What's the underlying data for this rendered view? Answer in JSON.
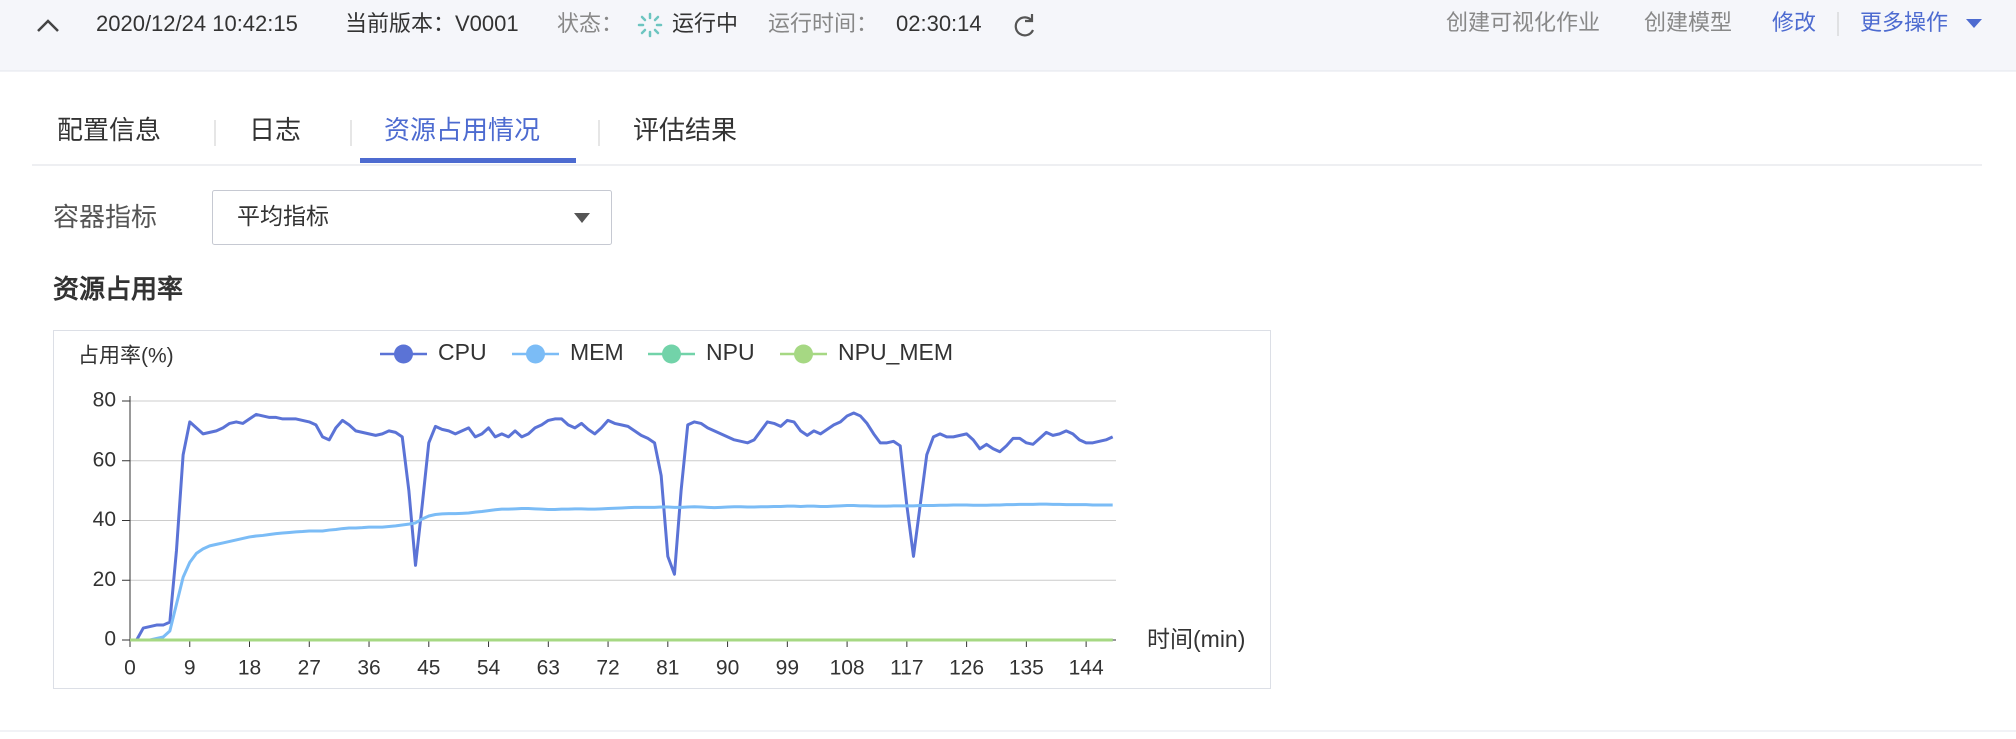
{
  "header": {
    "timestamp": "2020/12/24 10:42:15",
    "version": "当前版本：V0001",
    "status_label": "状态：",
    "status": "运行中",
    "runtime_label": "运行时间：",
    "runtime": "02:30:14",
    "actions": [
      "创建可视化作业",
      "创建模型",
      "修改",
      "更多操作"
    ]
  },
  "tabs": [
    "配置信息",
    "日志",
    "资源占用情况",
    "评估结果"
  ],
  "filter": {
    "label": "容器指标",
    "value": "平均指标"
  },
  "section_title": "资源占用率",
  "chart_data": {
    "type": "line",
    "y_label": "占用率(%)",
    "x_label": "时间(min)",
    "x": [
      0,
      1,
      2,
      3,
      4,
      5,
      6,
      7,
      8,
      9,
      10,
      11,
      12,
      13,
      14,
      15,
      16,
      17,
      18,
      19,
      20,
      21,
      22,
      23,
      24,
      25,
      26,
      27,
      28,
      29,
      30,
      31,
      32,
      33,
      34,
      35,
      36,
      37,
      38,
      39,
      40,
      41,
      42,
      43,
      44,
      45,
      46,
      47,
      48,
      49,
      50,
      51,
      52,
      53,
      54,
      55,
      56,
      57,
      58,
      59,
      60,
      61,
      62,
      63,
      64,
      65,
      66,
      67,
      68,
      69,
      70,
      71,
      72,
      73,
      74,
      75,
      76,
      77,
      78,
      79,
      80,
      81,
      82,
      83,
      84,
      85,
      86,
      87,
      88,
      89,
      90,
      91,
      92,
      93,
      94,
      95,
      96,
      97,
      98,
      99,
      100,
      101,
      102,
      103,
      104,
      105,
      106,
      107,
      108,
      109,
      110,
      111,
      112,
      113,
      114,
      115,
      116,
      117,
      118,
      119,
      120,
      121,
      122,
      123,
      124,
      125,
      126,
      127,
      128,
      129,
      130,
      131,
      132,
      133,
      134,
      135,
      136,
      137,
      138,
      139,
      140,
      141,
      142,
      143,
      144,
      145,
      146,
      147,
      148
    ],
    "xlim": [
      0,
      148.5
    ],
    "xticks": [
      0,
      9,
      18,
      27,
      36,
      45,
      54,
      63,
      72,
      81,
      90,
      99,
      108,
      117,
      126,
      135,
      144
    ],
    "ylim": [
      0,
      80
    ],
    "yticks": [
      0,
      20,
      40,
      60,
      80
    ],
    "grid": true,
    "series": [
      {
        "name": "CPU",
        "color": "#5b73d6",
        "values": [
          0,
          0,
          4,
          4.5,
          5,
          5,
          6,
          30,
          62,
          73,
          71,
          69,
          69.5,
          70,
          71,
          72.5,
          73,
          72.5,
          74,
          75.5,
          75,
          74.5,
          74.5,
          74,
          74,
          74,
          73.5,
          73,
          72,
          68,
          67,
          71,
          73.5,
          72,
          70,
          69.5,
          69,
          68.5,
          69,
          70,
          69.5,
          68,
          50,
          25,
          45,
          66,
          71.5,
          70.5,
          70,
          69,
          70,
          71,
          68,
          69,
          71,
          68,
          69,
          68,
          70,
          68,
          69,
          71,
          72,
          73.5,
          74,
          74,
          72,
          71,
          72.5,
          70.5,
          69,
          71,
          73.5,
          72.5,
          72,
          71.5,
          70,
          68.5,
          67.5,
          66,
          55,
          28,
          22,
          50,
          72,
          73,
          72.5,
          71,
          70,
          69,
          68,
          67,
          66.5,
          66,
          67,
          70,
          73,
          72.5,
          71.5,
          73.5,
          73,
          70,
          68.5,
          70,
          69,
          70.5,
          72,
          73,
          75,
          76,
          75,
          72.5,
          69,
          66,
          66,
          66.5,
          65,
          45,
          28,
          45,
          62,
          68,
          69,
          68,
          68,
          68.5,
          69,
          67,
          64,
          65.5,
          64,
          63,
          65,
          67.5,
          67.5,
          66,
          65.5,
          67.5,
          69.5,
          68.5,
          69,
          70,
          69,
          67,
          66,
          66,
          66.5,
          67,
          68
        ]
      },
      {
        "name": "MEM",
        "color": "#7bbcf6",
        "values": [
          0,
          0,
          0,
          0,
          0.5,
          1,
          3,
          12,
          21,
          26,
          29,
          30.5,
          31.5,
          32,
          32.5,
          33,
          33.5,
          34,
          34.5,
          34.8,
          35,
          35.3,
          35.6,
          35.8,
          36,
          36.2,
          36.3,
          36.5,
          36.5,
          36.5,
          36.8,
          37,
          37.3,
          37.5,
          37.5,
          37.6,
          37.8,
          37.8,
          37.8,
          38,
          38.2,
          38.5,
          38.8,
          39.2,
          40.5,
          41.5,
          42,
          42.2,
          42.3,
          42.3,
          42.4,
          42.5,
          42.8,
          43,
          43.3,
          43.6,
          43.8,
          43.8,
          43.9,
          44,
          44,
          43.9,
          43.8,
          43.7,
          43.7,
          43.8,
          43.8,
          43.9,
          43.9,
          43.8,
          43.8,
          43.9,
          44,
          44.1,
          44.2,
          44.3,
          44.4,
          44.4,
          44.4,
          44.4,
          44.5,
          44.5,
          44.4,
          44.4,
          44.5,
          44.6,
          44.5,
          44.4,
          44.3,
          44.4,
          44.5,
          44.6,
          44.6,
          44.5,
          44.5,
          44.6,
          44.6,
          44.7,
          44.7,
          44.8,
          44.8,
          44.7,
          44.8,
          44.8,
          44.7,
          44.7,
          44.8,
          44.9,
          45,
          45,
          44.9,
          44.9,
          44.8,
          44.8,
          44.8,
          44.9,
          44.9,
          44.9,
          44.9,
          45,
          45,
          45,
          45.1,
          45.1,
          45.2,
          45.2,
          45.2,
          45.1,
          45.1,
          45.1,
          45.2,
          45.2,
          45.3,
          45.3,
          45.4,
          45.4,
          45.4,
          45.5,
          45.5,
          45.4,
          45.4,
          45.3,
          45.3,
          45.3,
          45.3,
          45.2,
          45.2,
          45.2,
          45.2
        ]
      },
      {
        "name": "NPU",
        "color": "#72d3a9",
        "values": [
          0,
          0,
          0,
          0,
          0,
          0,
          0,
          0,
          0,
          0,
          0,
          0,
          0,
          0,
          0,
          0,
          0,
          0,
          0,
          0,
          0,
          0,
          0,
          0,
          0,
          0,
          0,
          0,
          0,
          0,
          0,
          0,
          0,
          0,
          0,
          0,
          0,
          0,
          0,
          0,
          0,
          0,
          0,
          0,
          0,
          0,
          0,
          0,
          0,
          0,
          0,
          0,
          0,
          0,
          0,
          0,
          0,
          0,
          0,
          0,
          0,
          0,
          0,
          0,
          0,
          0,
          0,
          0,
          0,
          0,
          0,
          0,
          0,
          0,
          0,
          0,
          0,
          0,
          0,
          0,
          0,
          0,
          0,
          0,
          0,
          0,
          0,
          0,
          0,
          0,
          0,
          0,
          0,
          0,
          0,
          0,
          0,
          0,
          0,
          0,
          0,
          0,
          0,
          0,
          0,
          0,
          0,
          0,
          0,
          0,
          0,
          0,
          0,
          0,
          0,
          0,
          0,
          0,
          0,
          0,
          0,
          0,
          0,
          0,
          0,
          0,
          0,
          0,
          0,
          0,
          0,
          0,
          0,
          0,
          0,
          0,
          0,
          0,
          0,
          0,
          0,
          0,
          0,
          0,
          0,
          0,
          0,
          0,
          0
        ]
      },
      {
        "name": "NPU_MEM",
        "color": "#a6d883",
        "values": [
          0,
          0,
          0,
          0,
          0,
          0,
          0,
          0,
          0,
          0,
          0,
          0,
          0,
          0,
          0,
          0,
          0,
          0,
          0,
          0,
          0,
          0,
          0,
          0,
          0,
          0,
          0,
          0,
          0,
          0,
          0,
          0,
          0,
          0,
          0,
          0,
          0,
          0,
          0,
          0,
          0,
          0,
          0,
          0,
          0,
          0,
          0,
          0,
          0,
          0,
          0,
          0,
          0,
          0,
          0,
          0,
          0,
          0,
          0,
          0,
          0,
          0,
          0,
          0,
          0,
          0,
          0,
          0,
          0,
          0,
          0,
          0,
          0,
          0,
          0,
          0,
          0,
          0,
          0,
          0,
          0,
          0,
          0,
          0,
          0,
          0,
          0,
          0,
          0,
          0,
          0,
          0,
          0,
          0,
          0,
          0,
          0,
          0,
          0,
          0,
          0,
          0,
          0,
          0,
          0,
          0,
          0,
          0,
          0,
          0,
          0,
          0,
          0,
          0,
          0,
          0,
          0,
          0,
          0,
          0,
          0,
          0,
          0,
          0,
          0,
          0,
          0,
          0,
          0,
          0,
          0,
          0,
          0,
          0,
          0,
          0,
          0,
          0,
          0,
          0,
          0,
          0,
          0,
          0,
          0,
          0,
          0,
          0,
          0
        ]
      }
    ]
  }
}
